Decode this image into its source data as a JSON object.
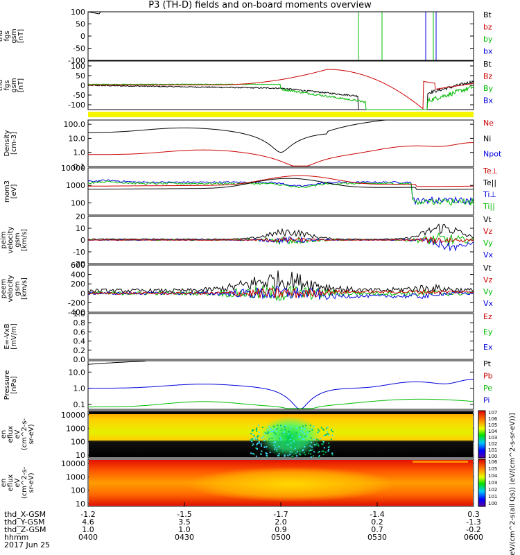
{
  "title": "P3 (TH-D) fields and on-board moments overview",
  "date": "2017 Jun 25",
  "colorbar_label": "[eV/(cm^2-s(all Qs)) (eV/(cm^2-s-sr-eV))]",
  "colorbar_ticks_top": [
    "10^7",
    "10^6",
    "10^5",
    "10^4",
    "10^3",
    "10^2",
    "10^1",
    "10^0"
  ],
  "colorbar_ticks_bottom": [
    "10^6",
    "10^5",
    "10^4",
    "10^3",
    "10^2",
    "10^1",
    "10^0"
  ],
  "ephemeris": {
    "labels": [
      "thd_X-GSM",
      "thd_Y-GSM",
      "thd_Z-GSM",
      "hhmm"
    ],
    "columns": [
      [
        "-1.2",
        "4.6",
        "1.0",
        "0400"
      ],
      [
        "-1.5",
        "3.5",
        "1.0",
        "0430"
      ],
      [
        "-1.7",
        "2.0",
        "0.9",
        "0500"
      ],
      [
        "-1.4",
        "0.2",
        "0.7",
        "0530"
      ],
      [
        "0.3",
        "-1.3",
        "-0.2",
        "0600"
      ]
    ]
  },
  "chart_data": [
    {
      "type": "line",
      "ylabel": [
        "thd",
        "fgs",
        "gsm",
        "[nT]"
      ],
      "ylim": [
        -100,
        100
      ],
      "yticks": [
        "100",
        "50",
        "0",
        "-50",
        "-100"
      ],
      "series": [
        {
          "name": "Bt",
          "color": "#000000"
        },
        {
          "name": "bz",
          "color": "#cc0000"
        },
        {
          "name": "by",
          "color": "#00bb00"
        },
        {
          "name": "bx",
          "color": "#0000dd"
        }
      ]
    },
    {
      "type": "line",
      "ylabel": [
        "thd",
        "fgs",
        "gsm",
        "[nT]"
      ],
      "ylim": [
        -125,
        125
      ],
      "yticks": [
        "100",
        "50",
        "0",
        "-50",
        "-100"
      ],
      "series": [
        {
          "name": "Bt",
          "color": "#000000"
        },
        {
          "name": "Bz",
          "color": "#cc0000"
        },
        {
          "name": "By",
          "color": "#00bb00"
        },
        {
          "name": "Bx",
          "color": "#0000dd"
        }
      ]
    },
    {
      "type": "line",
      "scale": "log",
      "ylabel": [
        "Density",
        "[cm-3]"
      ],
      "ylim": [
        0.1,
        200
      ],
      "yticks": [
        "100.0",
        "10.0",
        "1.0",
        "0.1"
      ],
      "series": [
        {
          "name": "Ne",
          "color": "#cc0000"
        },
        {
          "name": "Ni",
          "color": "#000000"
        },
        {
          "name": "Npot",
          "color": "#0000dd"
        }
      ]
    },
    {
      "type": "line",
      "scale": "log",
      "ylabel": [
        "mom3",
        "[eV]"
      ],
      "ylim": [
        20,
        10000
      ],
      "yticks": [
        "10000",
        "1000",
        "100"
      ],
      "series": [
        {
          "name": "Te⊥",
          "color": "#cc0000"
        },
        {
          "name": "Te||",
          "color": "#000000"
        },
        {
          "name": "Ti⊥",
          "color": "#0000dd"
        },
        {
          "name": "Ti||",
          "color": "#00bb00"
        }
      ]
    },
    {
      "type": "line",
      "ylabel": [
        "thd",
        "peim",
        "velocity",
        "gsm",
        "[km/s]"
      ],
      "ylim": [
        -20,
        20
      ],
      "yticks": [
        "20",
        "10",
        "0",
        "-10",
        "-20"
      ],
      "series": [
        {
          "name": "Vt",
          "color": "#000000"
        },
        {
          "name": "Vz",
          "color": "#cc0000"
        },
        {
          "name": "Vy",
          "color": "#00bb00"
        },
        {
          "name": "Vx",
          "color": "#0000dd"
        }
      ]
    },
    {
      "type": "line",
      "ylabel": [
        "thd",
        "peem",
        "velocity",
        "gsm",
        "[km/s]"
      ],
      "ylim": [
        -400,
        600
      ],
      "yticks": [
        "600",
        "400",
        "200",
        "0",
        "-200",
        "-400"
      ],
      "series": [
        {
          "name": "Vt",
          "color": "#000000"
        },
        {
          "name": "Vz",
          "color": "#cc0000"
        },
        {
          "name": "Vy",
          "color": "#00bb00"
        },
        {
          "name": "Vx",
          "color": "#0000dd"
        }
      ]
    },
    {
      "type": "line",
      "ylabel": [
        "E=-VxB",
        "[mV/m]"
      ],
      "ylim": [
        0,
        1
      ],
      "yticks": [
        "1.0",
        "0.8",
        "0.6",
        "0.4",
        "0.2",
        "0.0"
      ],
      "series": [
        {
          "name": "Ez",
          "color": "#cc0000"
        },
        {
          "name": "Ey",
          "color": "#00bb00"
        },
        {
          "name": "Ex",
          "color": "#0000dd"
        }
      ]
    },
    {
      "type": "line",
      "scale": "log",
      "ylabel": [
        "Pressure",
        "[nPa]"
      ],
      "ylim": [
        0.05,
        50
      ],
      "yticks": [
        "10.0",
        "1.0",
        "0.1"
      ],
      "series": [
        {
          "name": "Pt",
          "color": "#000000"
        },
        {
          "name": "Pb",
          "color": "#cc0000"
        },
        {
          "name": "Pe",
          "color": "#00bb00"
        },
        {
          "name": "Pi",
          "color": "#0000dd"
        }
      ]
    },
    {
      "type": "heatmap",
      "ylabel": [
        "thd",
        "peir",
        "en",
        "eflux",
        "eV",
        "(cm^2-s-",
        "sr-eV)"
      ],
      "yticks": [
        "10000",
        "1000",
        "100",
        "10"
      ]
    },
    {
      "type": "heatmap",
      "ylabel": [
        "thd",
        "peer",
        "en",
        "eflux",
        "eV",
        "(cm^2-s-",
        "sr-eV)"
      ],
      "yticks": [
        "10000",
        "1000",
        "100",
        "10"
      ]
    }
  ]
}
